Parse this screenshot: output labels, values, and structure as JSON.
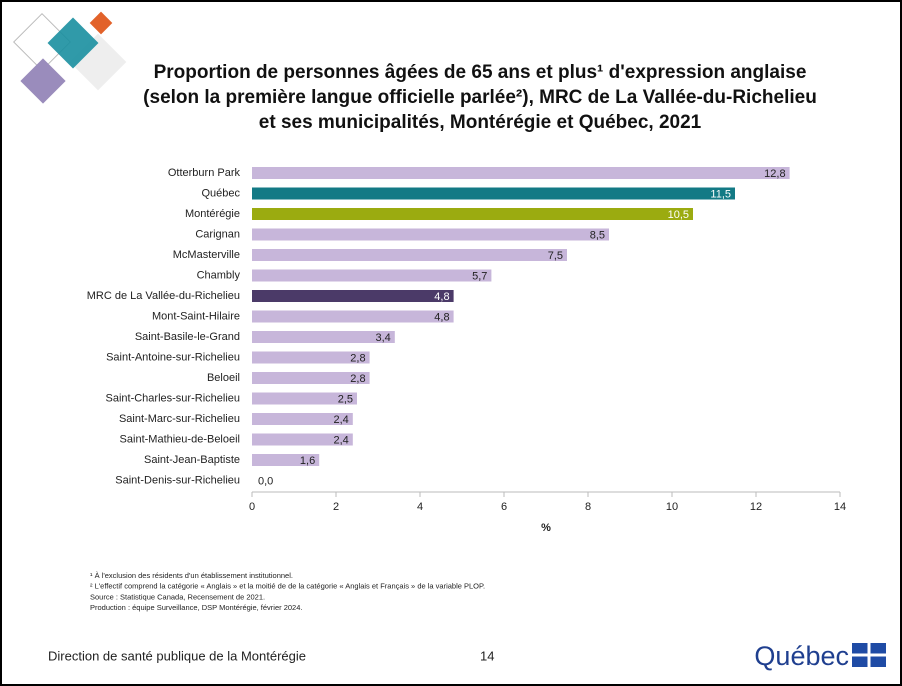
{
  "chart_data": {
    "type": "hbar",
    "title": "Proportion de personnes âgées de 65 ans et plus¹ d'expression anglaise (selon la première langue officielle parlée²), MRC de La Vallée-du-Richelieu et ses municipalités, Montérégie et Québec, 2021",
    "categories": [
      "Otterburn Park",
      "Québec",
      "Montérégie",
      "Carignan",
      "McMasterville",
      "Chambly",
      "MRC de La Vallée-du-Richelieu",
      "Mont-Saint-Hilaire",
      "Saint-Basile-le-Grand",
      "Saint-Antoine-sur-Richelieu",
      "Beloeil",
      "Saint-Charles-sur-Richelieu",
      "Saint-Marc-sur-Richelieu",
      "Saint-Mathieu-de-Beloeil",
      "Saint-Jean-Baptiste",
      "Saint-Denis-sur-Richelieu"
    ],
    "values": [
      12.8,
      11.5,
      10.5,
      8.5,
      7.5,
      5.7,
      4.8,
      4.8,
      3.4,
      2.8,
      2.8,
      2.5,
      2.4,
      2.4,
      1.6,
      0.0
    ],
    "value_labels": [
      "12,8",
      "11,5",
      "10,5",
      "8,5",
      "7,5",
      "5,7",
      "4,8",
      "4,8",
      "3,4",
      "2,8",
      "2,8",
      "2,5",
      "2,4",
      "2,4",
      "1,6",
      "0,0"
    ],
    "colors": [
      "#c7b6da",
      "#137a85",
      "#9bab10",
      "#c7b6da",
      "#c7b6da",
      "#c7b6da",
      "#4b3a68",
      "#c7b6da",
      "#c7b6da",
      "#c7b6da",
      "#c7b6da",
      "#c7b6da",
      "#c7b6da",
      "#c7b6da",
      "#c7b6da",
      "#c7b6da"
    ],
    "xlabel": "%",
    "xlim": [
      0,
      14
    ],
    "xticks": [
      0,
      2,
      4,
      6,
      8,
      10,
      12,
      14
    ]
  },
  "footnotes": [
    "¹ À l'exclusion des résidents d'un établissement institutionnel.",
    "² L'effectif comprend la catégorie « Anglais » et la moitié de de la catégorie « Anglais et Français » de la variable PLOP.",
    "Source : Statistique Canada, Recensement de 2021.",
    "Production : équipe Surveillance, DSP Montérégie, février 2024."
  ],
  "footer": {
    "organization": "Direction de santé publique de la Montérégie",
    "page": "14",
    "logo": "Québec"
  }
}
